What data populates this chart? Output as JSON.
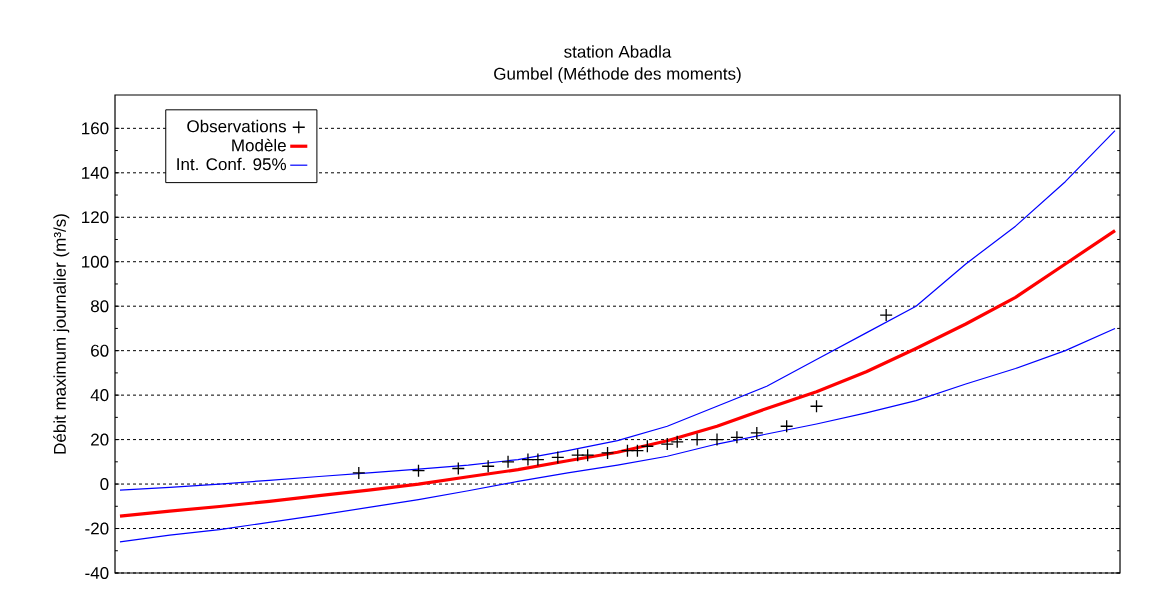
{
  "chart_data": {
    "type": "line",
    "title": "station Abadla",
    "subtitle": "Gumbel (Méthode des moments)",
    "ylabel": "Débit maximum journalier (m³/s)",
    "categories": [
      null,
      null,
      null,
      null,
      null,
      null,
      null,
      null,
      null,
      null,
      null,
      null,
      null,
      null,
      null,
      null,
      null,
      null,
      null,
      null,
      null,
      null,
      null,
      null,
      null,
      null,
      null,
      null,
      null,
      null,
      null,
      null,
      null,
      null,
      null,
      null,
      null,
      null,
      null,
      null,
      null,
      null,
      null,
      null,
      null,
      null,
      null,
      null,
      null,
      null,
      null,
      null,
      null,
      null,
      null,
      null,
      null,
      null,
      null,
      null,
      null,
      null,
      null,
      null,
      null,
      null,
      null,
      null,
      null,
      null,
      null,
      null,
      null,
      null,
      null,
      null,
      null,
      null,
      null,
      null,
      null,
      null,
      null,
      null,
      null,
      null,
      null,
      null,
      null,
      null,
      null,
      null,
      null,
      null,
      null,
      null,
      null,
      null,
      null,
      null,
      null
    ],
    "series": [
      {
        "name": "Observations",
        "type": "scatter",
        "marker": "cross",
        "color": "#000000",
        "values": [
          null,
          null,
          null,
          null,
          null,
          null,
          null,
          null,
          null,
          null,
          null,
          null,
          null,
          null,
          null,
          null,
          null,
          null,
          null,
          null,
          null,
          null,
          null,
          null,
          5,
          null,
          null,
          null,
          null,
          null,
          6,
          null,
          null,
          null,
          7,
          null,
          null,
          8,
          null,
          10,
          null,
          11,
          11,
          null,
          12,
          null,
          13,
          13,
          null,
          14,
          null,
          15,
          15,
          17,
          null,
          18,
          19,
          null,
          20,
          null,
          20,
          null,
          21,
          null,
          23,
          null,
          null,
          26,
          null,
          null,
          35,
          null,
          null,
          null,
          null,
          null,
          null,
          76,
          null,
          null,
          null,
          null,
          null,
          null,
          null,
          null,
          null,
          null,
          null,
          null,
          null,
          null,
          null,
          null,
          null,
          null,
          null,
          null,
          null,
          null,
          null
        ]
      },
      {
        "name": "Modèle",
        "type": "line",
        "color": "#ff0000",
        "values": [
          -14.4,
          null,
          null,
          null,
          null,
          -12.2,
          null,
          null,
          null,
          null,
          -10.1,
          null,
          null,
          null,
          null,
          -7.8,
          null,
          null,
          null,
          null,
          -5.2,
          null,
          null,
          null,
          null,
          -2.7,
          null,
          null,
          null,
          null,
          0,
          null,
          null,
          null,
          null,
          3.3,
          null,
          null,
          null,
          null,
          6.5,
          null,
          null,
          null,
          null,
          10.5,
          null,
          null,
          null,
          null,
          14.3,
          null,
          null,
          null,
          null,
          19.5,
          null,
          null,
          null,
          null,
          26,
          null,
          null,
          null,
          null,
          34,
          null,
          null,
          null,
          null,
          41.5,
          null,
          null,
          null,
          null,
          50.5,
          null,
          null,
          null,
          null,
          61,
          null,
          null,
          null,
          null,
          72,
          null,
          null,
          null,
          null,
          84,
          null,
          null,
          null,
          null,
          99,
          null,
          null,
          null,
          null,
          114
        ]
      },
      {
        "name": "Int. Conf. 95%",
        "type": "line",
        "color": "#0000ff",
        "values": [
          -2.7,
          null,
          null,
          null,
          null,
          -1.5,
          null,
          null,
          null,
          null,
          0,
          null,
          null,
          null,
          null,
          1.7,
          null,
          null,
          null,
          null,
          3.4,
          null,
          null,
          null,
          null,
          5,
          null,
          null,
          null,
          null,
          6.7,
          null,
          null,
          null,
          null,
          8.5,
          null,
          null,
          null,
          null,
          11,
          null,
          null,
          null,
          null,
          15,
          null,
          null,
          null,
          null,
          19.5,
          null,
          null,
          null,
          null,
          26,
          null,
          null,
          null,
          null,
          35,
          null,
          null,
          null,
          null,
          44,
          null,
          null,
          null,
          null,
          56,
          null,
          null,
          null,
          null,
          68,
          null,
          null,
          null,
          null,
          80,
          null,
          null,
          null,
          null,
          99,
          null,
          null,
          null,
          null,
          116,
          null,
          null,
          null,
          null,
          136,
          null,
          null,
          null,
          null,
          159
        ]
      },
      {
        "type": "line",
        "color": "#0000ff",
        "values": [
          -26,
          null,
          null,
          null,
          null,
          -23,
          null,
          null,
          null,
          null,
          -20.5,
          null,
          null,
          null,
          null,
          -17.2,
          null,
          null,
          null,
          null,
          -14,
          null,
          null,
          null,
          null,
          -10.5,
          null,
          null,
          null,
          null,
          -7,
          null,
          null,
          null,
          null,
          -3,
          null,
          null,
          null,
          null,
          1.2,
          null,
          null,
          null,
          null,
          5,
          null,
          null,
          null,
          null,
          8.5,
          null,
          null,
          null,
          null,
          12.5,
          null,
          null,
          null,
          null,
          18,
          null,
          null,
          null,
          null,
          22.5,
          null,
          null,
          null,
          null,
          27,
          null,
          null,
          null,
          null,
          32,
          null,
          null,
          null,
          null,
          37.5,
          null,
          null,
          null,
          null,
          45,
          null,
          null,
          null,
          null,
          52,
          null,
          null,
          null,
          null,
          60,
          null,
          null,
          null,
          null,
          70
        ]
      }
    ],
    "ylim": [
      -40,
      175
    ],
    "yticks": [
      -40,
      -20,
      0,
      20,
      40,
      60,
      80,
      100,
      120,
      140,
      160
    ],
    "grid": "y",
    "legend": "top left",
    "tick_labels": "y"
  }
}
